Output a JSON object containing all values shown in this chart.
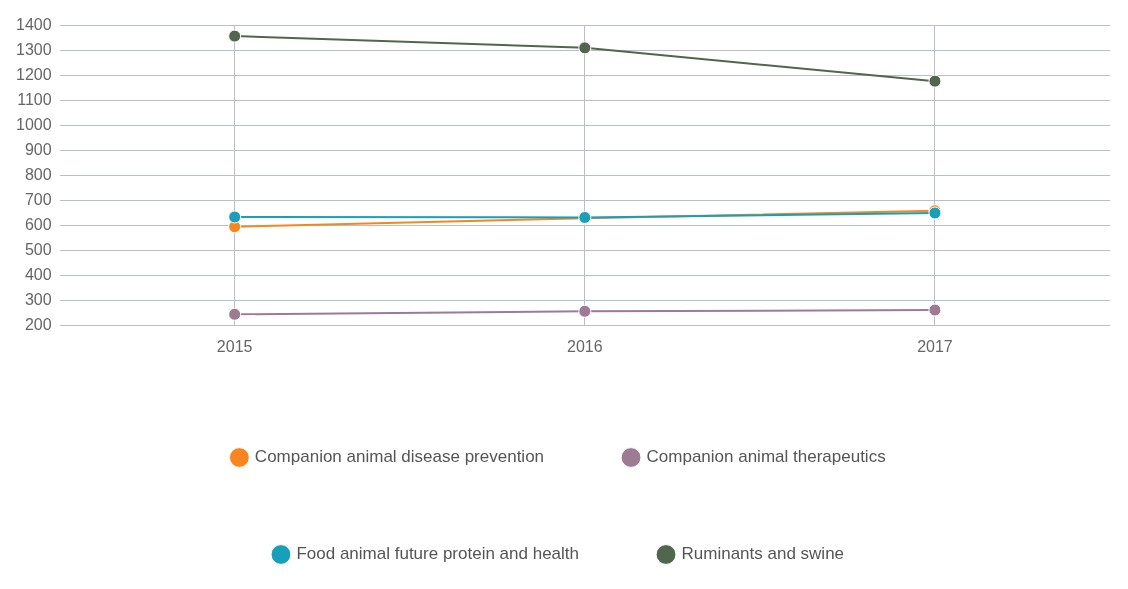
{
  "chart_data": {
    "type": "line",
    "categories": [
      "2015",
      "2016",
      "2017"
    ],
    "series": [
      {
        "name": "Companion animal disease prevention",
        "color": "#f7861e",
        "values": [
          596,
          630,
          660
        ]
      },
      {
        "name": "Companion animal therapeutics",
        "color": "#9c7b93",
        "values": [
          246,
          258,
          263
        ]
      },
      {
        "name": "Food animal future protein and health",
        "color": "#1a9fba",
        "values": [
          635,
          633,
          651
        ]
      },
      {
        "name": "Ruminants and swine",
        "color": "#52654f",
        "values": [
          1358,
          1311,
          1178
        ]
      }
    ],
    "ylim": [
      200,
      1400
    ],
    "yticks": [
      200,
      300,
      400,
      500,
      600,
      700,
      800,
      900,
      1000,
      1100,
      1200,
      1300,
      1400
    ],
    "grid": true,
    "legend": "bottom",
    "marker": "circle",
    "line_style": "solid"
  }
}
